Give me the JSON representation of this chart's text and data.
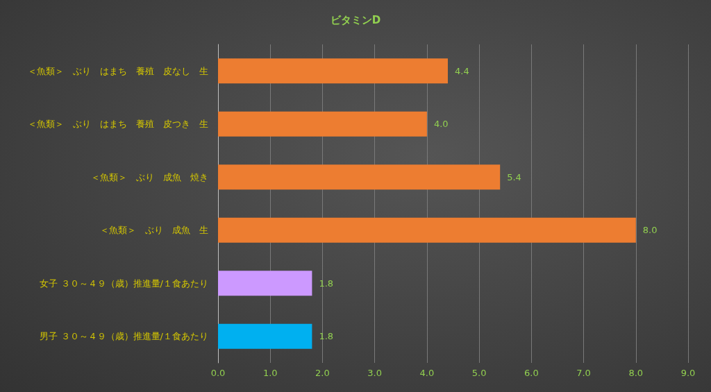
{
  "chart_data": {
    "type": "bar",
    "title": "ビタミンD",
    "orientation": "horizontal",
    "categories": [
      "＜魚類＞　ぶり　はまち　養殖　皮なし　生",
      "＜魚類＞　ぶり　はまち　養殖　皮つき　生",
      "＜魚類＞　ぶり　成魚　焼き",
      "＜魚類＞　ぶり　成魚　生",
      "女子 ３０～４９（歳）推進量/１食あたり",
      "男子 ３０～４９（歳）推進量/１食あたり"
    ],
    "values": [
      4.4,
      4.0,
      5.4,
      8.0,
      1.8,
      1.8
    ],
    "value_labels": [
      "4.4",
      "4.0",
      "5.4",
      "8.0",
      "1.8",
      "1.8"
    ],
    "colors": [
      "#ed7d31",
      "#ed7d31",
      "#ed7d31",
      "#ed7d31",
      "#cc99ff",
      "#00b0f0"
    ],
    "xlim": [
      0,
      9
    ],
    "xticks": [
      {
        "value": 0,
        "label": "0.0"
      },
      {
        "value": 1,
        "label": "1.0"
      },
      {
        "value": 2,
        "label": "2.0"
      },
      {
        "value": 3,
        "label": "3.0"
      },
      {
        "value": 4,
        "label": "4.0"
      },
      {
        "value": 5,
        "label": "5.0"
      },
      {
        "value": 6,
        "label": "6.0"
      },
      {
        "value": 7,
        "label": "7.0"
      },
      {
        "value": 8,
        "label": "8.0"
      },
      {
        "value": 9,
        "label": "9.0"
      }
    ],
    "grid": "x"
  }
}
